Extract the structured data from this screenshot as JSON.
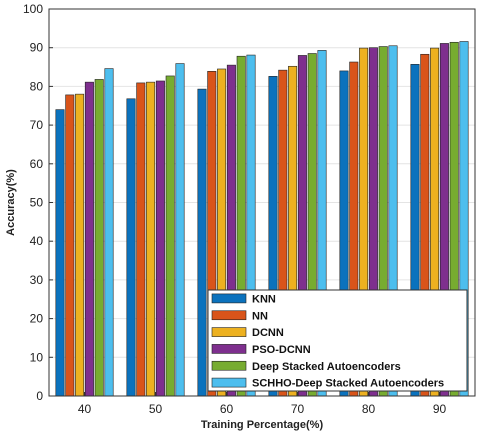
{
  "chart_data": {
    "type": "bar",
    "title": "",
    "xlabel": "Training Percentage(%)",
    "ylabel": "Accuracy(%)",
    "ylim": [
      0,
      100
    ],
    "yticks": [
      0,
      10,
      20,
      30,
      40,
      50,
      60,
      70,
      80,
      90,
      100
    ],
    "categories": [
      "40",
      "50",
      "60",
      "70",
      "80",
      "90"
    ],
    "grid": true,
    "legend_position": "bottom-right",
    "series": [
      {
        "name": "KNN",
        "color": "#0b72bd",
        "values": [
          74.0,
          76.8,
          79.3,
          82.6,
          84.0,
          85.7
        ]
      },
      {
        "name": "NN",
        "color": "#d9541a",
        "values": [
          77.8,
          80.9,
          83.9,
          84.2,
          86.3,
          88.3
        ]
      },
      {
        "name": "DCNN",
        "color": "#edb120",
        "values": [
          78.0,
          81.1,
          84.5,
          85.2,
          89.9,
          89.9
        ]
      },
      {
        "name": "PSO-DCNN",
        "color": "#7e2f8e",
        "values": [
          81.1,
          81.4,
          85.5,
          88.0,
          90.0,
          91.1
        ]
      },
      {
        "name": "Deep Stacked Autoencoders",
        "color": "#77ac30",
        "values": [
          81.8,
          82.7,
          87.8,
          88.5,
          90.3,
          91.4
        ]
      },
      {
        "name": "SCHHO-Deep Stacked Autoencoders",
        "color": "#4dbeee",
        "values": [
          84.6,
          85.9,
          88.1,
          89.3,
          90.5,
          91.6
        ]
      }
    ]
  }
}
